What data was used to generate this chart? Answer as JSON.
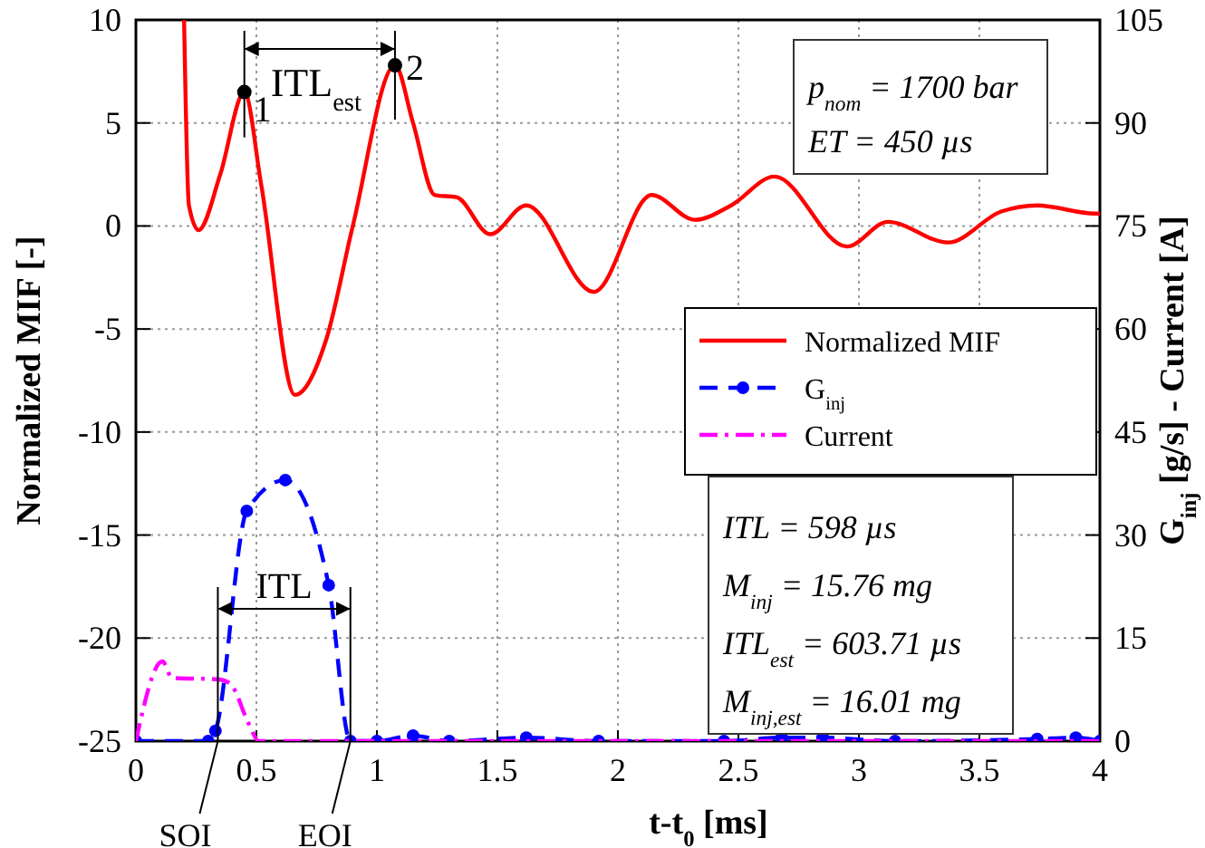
{
  "chart_data": {
    "type": "line",
    "xlabel": "t-t$_{0}$ [ms]",
    "ylabel": "Normalized MIF [-]",
    "y2label": "G$_{inj}$ [g/s] - Current [A]",
    "xlim": [
      0,
      4
    ],
    "xticks": [
      0,
      0.5,
      1,
      1.5,
      2,
      2.5,
      3,
      3.5,
      4
    ],
    "ylim": [
      -25,
      10
    ],
    "yticks": [
      -25,
      -20,
      -15,
      -10,
      -5,
      0,
      5,
      10
    ],
    "y2lim": [
      0,
      105
    ],
    "y2ticks": [
      0,
      15,
      30,
      45,
      60,
      75,
      90,
      105
    ],
    "grid": true,
    "legend": "right",
    "series": [
      {
        "name": "Normalized MIF",
        "color": "#ff0000",
        "line_style": "solid",
        "marker": "none",
        "x": [
          0.2,
          0.22,
          0.26,
          0.35,
          0.45,
          0.52,
          0.66,
          0.79,
          0.9,
          1.075,
          1.15,
          1.24,
          1.33,
          1.47,
          1.62,
          1.9,
          2.14,
          2.32,
          2.47,
          2.65,
          2.95,
          3.12,
          3.37,
          3.59,
          3.74,
          3.98,
          4
        ],
        "values": [
          10,
          1,
          -0.2,
          2.5,
          6.5,
          2,
          -8.2,
          -5.5,
          0,
          7.8,
          5,
          1.5,
          1.4,
          -0.4,
          1,
          -3.2,
          1.5,
          0.3,
          1,
          2.4,
          -1,
          0.2,
          -0.8,
          0.7,
          1,
          0.6,
          0.6
        ]
      },
      {
        "name": "G$_{inj}$",
        "color": "#0000ff",
        "axis": "y2",
        "line_style": "dashed",
        "marker": "circle",
        "x": [
          0,
          0.3,
          0.33,
          0.46,
          0.62,
          0.8,
          0.89,
          1.0,
          1.15,
          1.3,
          1.62,
          1.92,
          2.44,
          2.68,
          2.85,
          3.15,
          3.74,
          3.9,
          4
        ],
        "values": [
          0,
          0,
          1.5,
          33.5,
          38,
          22.7,
          0,
          0,
          0.8,
          0,
          0.5,
          0,
          0,
          0.5,
          0.5,
          0,
          0.3,
          0.5,
          0
        ]
      },
      {
        "name": "Current",
        "color": "#ff00ff",
        "axis": "y2",
        "line_style": "dashdot",
        "marker": "none",
        "x": [
          0,
          0.11,
          0.15,
          0.34,
          0.39,
          0.47,
          0.51,
          4
        ],
        "values": [
          0,
          11.6,
          9.2,
          9,
          8.4,
          2.4,
          0,
          0
        ]
      }
    ],
    "annotations": [
      {
        "text": "1",
        "x": 0.45,
        "y": 6.5
      },
      {
        "text": "2",
        "x": 1.075,
        "y": 7.8
      },
      "ITL$_{est}$",
      "ITL",
      {
        "text": "SOI",
        "x": 0.34,
        "y": -25
      },
      {
        "text": "EOI",
        "x": 0.89,
        "y": -25
      },
      "p$_{nom}$ = 1700 bar",
      "ET = 450 µs",
      "ITL = 598 µs",
      "M$_{inj}$ = 15.76 mg",
      "ITL$_{est}$ = 603.71 µs",
      "M$_{inj,est}$ = 16.01 mg"
    ]
  }
}
